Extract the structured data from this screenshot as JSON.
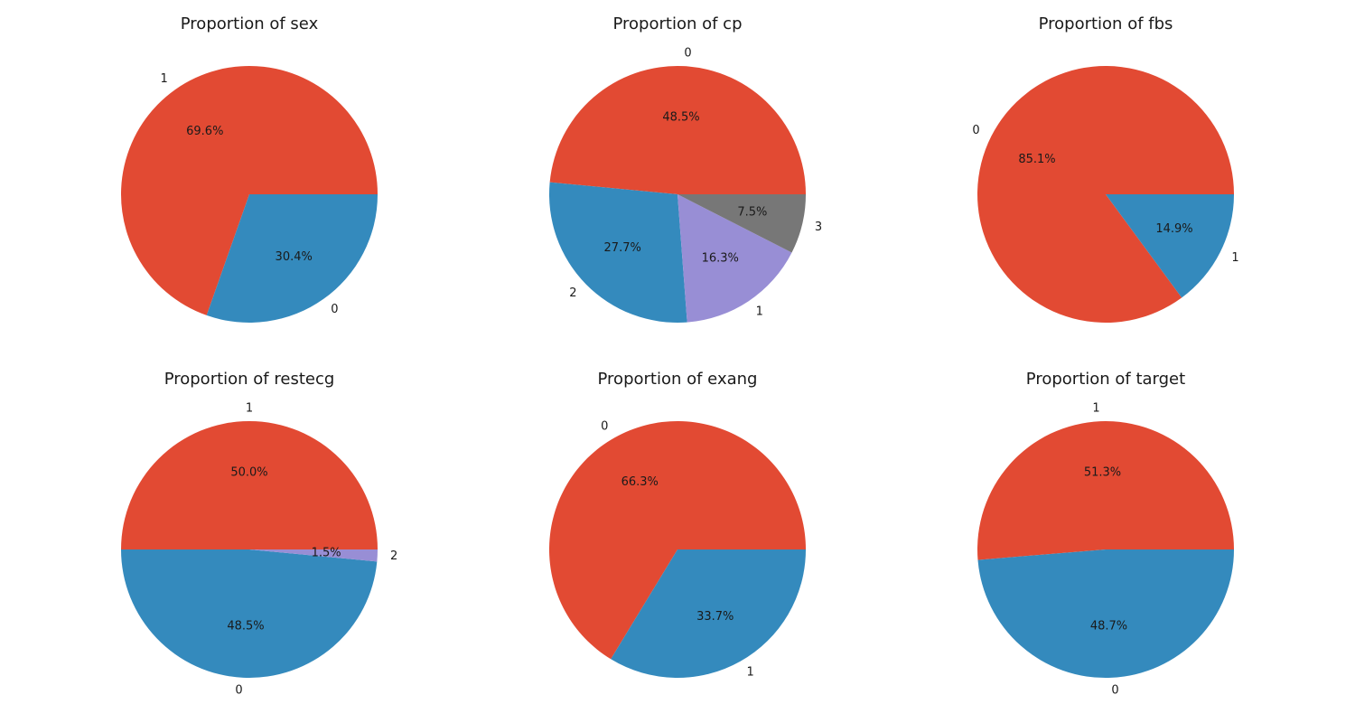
{
  "chart_data": [
    {
      "type": "pie",
      "title": "Proportion of sex",
      "labels": [
        "1",
        "0"
      ],
      "values": [
        69.6,
        30.4
      ],
      "percent_labels": [
        "69.6%",
        "30.4%"
      ],
      "colors": [
        "#E24A33",
        "#348ABD"
      ]
    },
    {
      "type": "pie",
      "title": "Proportion of cp",
      "labels": [
        "0",
        "2",
        "1",
        "3"
      ],
      "values": [
        48.5,
        27.7,
        16.3,
        7.5
      ],
      "percent_labels": [
        "48.5%",
        "27.7%",
        "16.3%",
        "7.5%"
      ],
      "colors": [
        "#E24A33",
        "#348ABD",
        "#988ED5",
        "#777777"
      ]
    },
    {
      "type": "pie",
      "title": "Proportion of fbs",
      "labels": [
        "0",
        "1"
      ],
      "values": [
        85.1,
        14.9
      ],
      "percent_labels": [
        "85.1%",
        "14.9%"
      ],
      "colors": [
        "#E24A33",
        "#348ABD"
      ]
    },
    {
      "type": "pie",
      "title": "Proportion of restecg",
      "labels": [
        "1",
        "0",
        "2"
      ],
      "values": [
        50.0,
        48.5,
        1.5
      ],
      "percent_labels": [
        "50.0%",
        "48.5%",
        "1.5%"
      ],
      "colors": [
        "#E24A33",
        "#348ABD",
        "#988ED5"
      ]
    },
    {
      "type": "pie",
      "title": "Proportion of exang",
      "labels": [
        "0",
        "1"
      ],
      "values": [
        66.3,
        33.7
      ],
      "percent_labels": [
        "66.3%",
        "33.7%"
      ],
      "colors": [
        "#E24A33",
        "#348ABD"
      ]
    },
    {
      "type": "pie",
      "title": "Proportion of target",
      "labels": [
        "1",
        "0"
      ],
      "values": [
        51.3,
        48.7
      ],
      "percent_labels": [
        "51.3%",
        "48.7%"
      ],
      "colors": [
        "#E24A33",
        "#348ABD"
      ]
    }
  ]
}
